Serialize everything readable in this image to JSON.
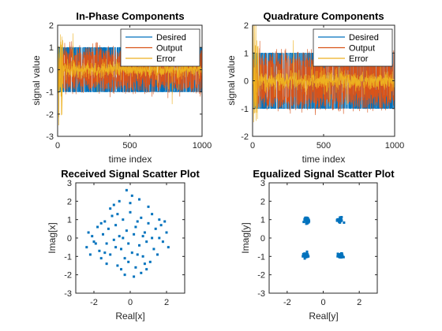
{
  "figure": {
    "background": "#ffffff"
  },
  "chart_data": [
    {
      "id": "inphase",
      "type": "line",
      "title": "In-Phase Components",
      "xlabel": "time index",
      "ylabel": "signal value",
      "xlim": [
        0,
        1000
      ],
      "ylim": [
        -3,
        2
      ],
      "xticks": [
        0,
        500,
        1000
      ],
      "yticks": [
        -3,
        -2,
        -1,
        0,
        1,
        2
      ],
      "legend": {
        "position": "top-right",
        "entries": [
          "Desired",
          "Output",
          "Error"
        ]
      },
      "series": [
        {
          "name": "Desired",
          "color": "#0072BD",
          "levels": [
            -1,
            1
          ],
          "description": "random +/-1 symbols over index 0-1000"
        },
        {
          "name": "Output",
          "color": "#D95319",
          "mean_levels": [
            -0.7,
            0.7
          ],
          "spread": 0.35,
          "description": "equalizer output, converges after ~30 samples"
        },
        {
          "name": "Error",
          "color": "#EDB120",
          "initial_range": [
            -2.6,
            1.6
          ],
          "settled_range": [
            -0.35,
            0.35
          ]
        }
      ]
    },
    {
      "id": "quadrature",
      "type": "line",
      "title": "Quadrature Components",
      "xlabel": "time index",
      "ylabel": "signal value",
      "xlim": [
        0,
        1000
      ],
      "ylim": [
        -2,
        2
      ],
      "xticks": [
        0,
        500,
        1000
      ],
      "yticks": [
        -2,
        -1,
        0,
        1,
        2
      ],
      "legend": {
        "position": "top-right",
        "entries": [
          "Desired",
          "Output",
          "Error"
        ]
      },
      "series": [
        {
          "name": "Desired",
          "color": "#0072BD",
          "levels": [
            -1,
            1
          ]
        },
        {
          "name": "Output",
          "color": "#D95319",
          "mean_levels": [
            -0.7,
            0.7
          ],
          "spread": 0.35
        },
        {
          "name": "Error",
          "color": "#EDB120",
          "initial_range": [
            -1.9,
            2.2
          ],
          "settled_range": [
            -0.35,
            0.35
          ]
        }
      ]
    },
    {
      "id": "received",
      "type": "scatter",
      "title": "Received Signal Scatter Plot",
      "xlabel": "Real[x]",
      "ylabel": "Imag[x]",
      "xlim": [
        -3,
        3
      ],
      "ylim": [
        -3,
        3
      ],
      "xticks": [
        -2,
        0,
        2
      ],
      "yticks": [
        -3,
        -2,
        -1,
        0,
        1,
        2,
        3
      ],
      "color": "#0072BD",
      "points": [
        [
          -2.4,
          -0.5
        ],
        [
          -2.3,
          0.3
        ],
        [
          -2.1,
          0.1
        ],
        [
          -2.0,
          -0.2
        ],
        [
          -1.8,
          0.6
        ],
        [
          -1.7,
          -0.7
        ],
        [
          -1.6,
          -1.1
        ],
        [
          -1.5,
          0.2
        ],
        [
          -1.4,
          0.9
        ],
        [
          -1.3,
          -0.3
        ],
        [
          -1.2,
          0.5
        ],
        [
          -1.1,
          -0.9
        ],
        [
          -1.0,
          1.2
        ],
        [
          -0.9,
          -0.1
        ],
        [
          -0.8,
          0.7
        ],
        [
          -0.7,
          -1.5
        ],
        [
          -0.6,
          0.1
        ],
        [
          -0.5,
          -0.6
        ],
        [
          -0.4,
          1.0
        ],
        [
          -0.3,
          -1.1
        ],
        [
          -0.2,
          0.4
        ],
        [
          -0.1,
          -0.3
        ],
        [
          0.0,
          1.4
        ],
        [
          0.1,
          -0.8
        ],
        [
          0.2,
          0.2
        ],
        [
          0.3,
          -1.6
        ],
        [
          0.4,
          0.9
        ],
        [
          0.5,
          -0.4
        ],
        [
          0.6,
          1.1
        ],
        [
          0.7,
          -1.0
        ],
        [
          0.8,
          0.3
        ],
        [
          0.9,
          -0.2
        ],
        [
          1.0,
          0.8
        ],
        [
          1.1,
          -1.3
        ],
        [
          1.2,
          0.0
        ],
        [
          1.3,
          -0.6
        ],
        [
          1.4,
          0.5
        ],
        [
          1.5,
          -0.9
        ],
        [
          1.6,
          1.0
        ],
        [
          1.8,
          -0.2
        ],
        [
          2.0,
          0.3
        ],
        [
          2.1,
          -0.5
        ],
        [
          -0.2,
          2.6
        ],
        [
          0.1,
          2.3
        ],
        [
          -0.6,
          2.0
        ],
        [
          0.5,
          2.1
        ],
        [
          0.0,
          1.9
        ],
        [
          -1.1,
          1.6
        ],
        [
          1.0,
          1.7
        ],
        [
          -0.3,
          -2.0
        ],
        [
          0.2,
          -2.1
        ],
        [
          0.6,
          -1.9
        ],
        [
          -0.5,
          -1.7
        ],
        [
          0.9,
          -1.7
        ],
        [
          -1.3,
          -1.4
        ],
        [
          -0.9,
          1.8
        ],
        [
          1.6,
          0.0
        ],
        [
          -1.9,
          -0.3
        ],
        [
          0.3,
          0.6
        ],
        [
          -0.4,
          0.0
        ],
        [
          0.7,
          0.1
        ],
        [
          -0.8,
          -0.5
        ],
        [
          1.2,
          1.3
        ],
        [
          -1.4,
          -0.8
        ],
        [
          0.4,
          -0.9
        ],
        [
          -0.1,
          -1.3
        ],
        [
          1.7,
          0.7
        ],
        [
          -1.6,
          0.8
        ],
        [
          0.8,
          -1.4
        ],
        [
          -0.7,
          1.3
        ],
        [
          1.9,
          0.9
        ],
        [
          -2.2,
          -0.9
        ]
      ]
    },
    {
      "id": "equalized",
      "type": "scatter",
      "title": "Equalized Signal Scatter Plot",
      "xlabel": "Real[y]",
      "ylabel": "Imag[y]",
      "xlim": [
        -3,
        3
      ],
      "ylim": [
        -3,
        3
      ],
      "xticks": [
        -2,
        0,
        2
      ],
      "yticks": [
        -3,
        -2,
        -1,
        0,
        1,
        2,
        3
      ],
      "color": "#0072BD",
      "clusters": [
        {
          "center": [
            -0.9,
            0.95
          ],
          "spread": 0.12
        },
        {
          "center": [
            0.9,
            0.95
          ],
          "spread": 0.12
        },
        {
          "center": [
            -0.95,
            -0.95
          ],
          "spread": 0.12
        },
        {
          "center": [
            0.95,
            -0.95
          ],
          "spread": 0.12
        }
      ]
    }
  ]
}
